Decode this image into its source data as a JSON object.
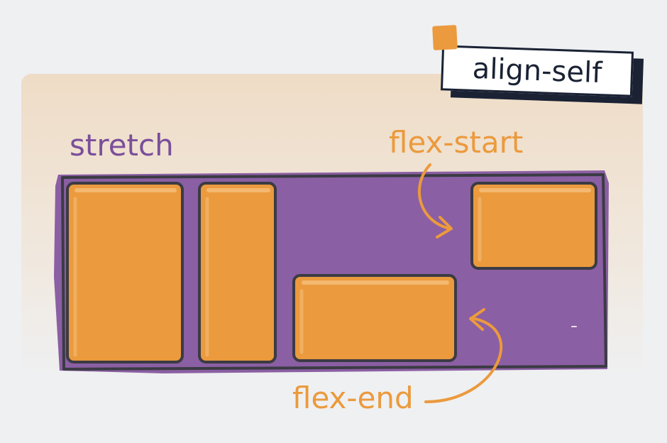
{
  "title": "align-self",
  "labels": {
    "stretch": "stretch",
    "flex_start": "flex-start",
    "flex_end": "flex-end"
  },
  "colors": {
    "background": "#eff0f2",
    "panel": "#f1dfc9",
    "container": "#8b5fa3",
    "item": "#eb9a3d",
    "outline": "#3b3b44",
    "label_purple": "#7a4f9a",
    "label_orange": "#eb9a3d",
    "tag_dark": "#1a2234"
  }
}
